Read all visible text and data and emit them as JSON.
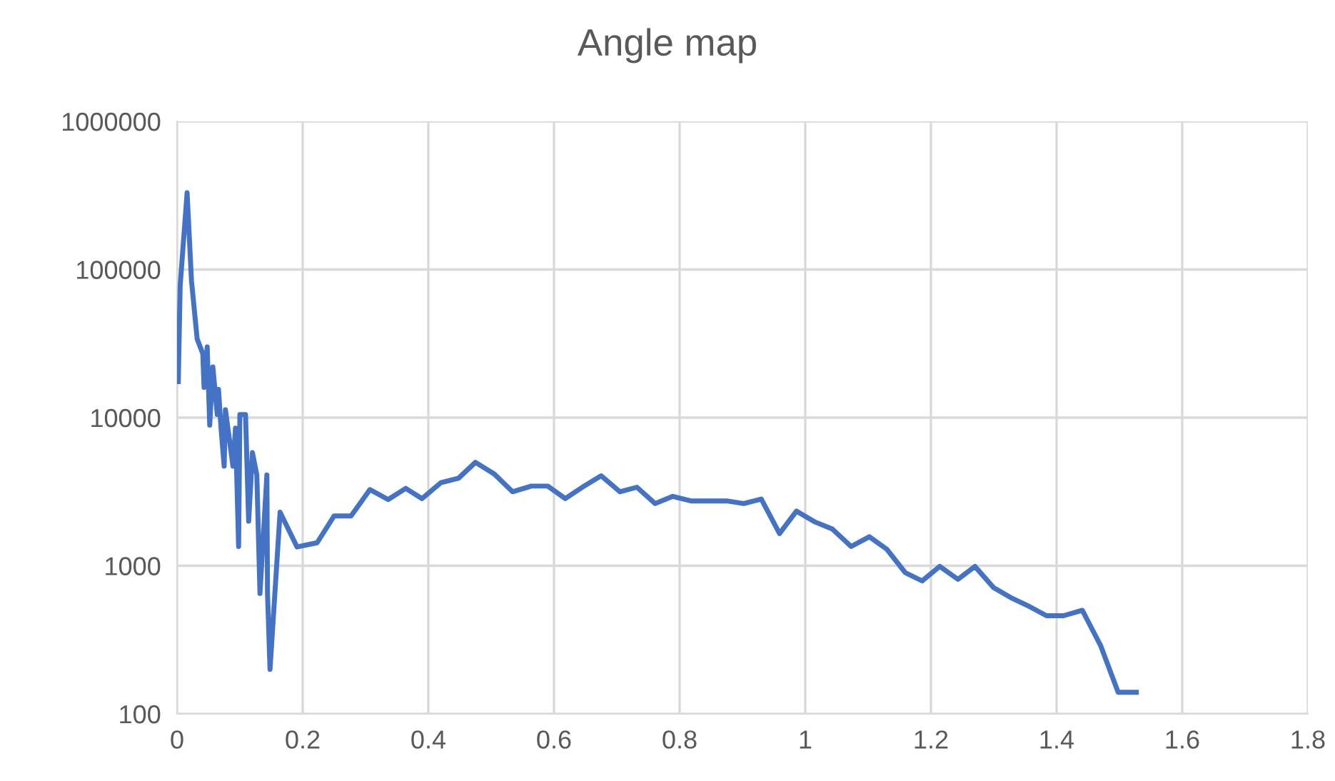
{
  "chart_data": {
    "type": "line",
    "title": "Angle map",
    "x": [
      0.002,
      0.005,
      0.016,
      0.023,
      0.032,
      0.041,
      0.043,
      0.048,
      0.052,
      0.057,
      0.064,
      0.066,
      0.07,
      0.075,
      0.077,
      0.089,
      0.093,
      0.098,
      0.1,
      0.109,
      0.114,
      0.12,
      0.127,
      0.132,
      0.143,
      0.144,
      0.148,
      0.164,
      0.191,
      0.223,
      0.25,
      0.277,
      0.307,
      0.336,
      0.364,
      0.39,
      0.42,
      0.448,
      0.475,
      0.505,
      0.534,
      0.564,
      0.59,
      0.618,
      0.648,
      0.675,
      0.705,
      0.732,
      0.761,
      0.789,
      0.818,
      0.848,
      0.875,
      0.902,
      0.93,
      0.959,
      0.986,
      1.016,
      1.043,
      1.073,
      1.102,
      1.13,
      1.159,
      1.186,
      1.214,
      1.243,
      1.27,
      1.3,
      1.327,
      1.357,
      1.384,
      1.411,
      1.441,
      1.47,
      1.498,
      1.527
    ],
    "series": [
      {
        "color": "#4472c4",
        "values": [
          17500,
          78000,
          330000,
          84000,
          34000,
          27000,
          16000,
          30000,
          8900,
          22000,
          10500,
          15500,
          8500,
          4700,
          11300,
          4700,
          8500,
          1350,
          10500,
          10500,
          2000,
          5800,
          4100,
          650,
          4100,
          650,
          200,
          2300,
          1340,
          1430,
          2170,
          2170,
          3270,
          2800,
          3330,
          2840,
          3640,
          3900,
          4990,
          4160,
          3160,
          3450,
          3450,
          2840,
          3450,
          4050,
          3160,
          3390,
          2630,
          2940,
          2740,
          2740,
          2740,
          2630,
          2820,
          1650,
          2340,
          1970,
          1770,
          1350,
          1570,
          1290,
          900,
          790,
          990,
          810,
          990,
          710,
          610,
          530,
          460,
          460,
          500,
          290,
          140,
          140
        ]
      }
    ],
    "log": "y",
    "xlim": [
      0,
      1.8
    ],
    "xticks": [
      0,
      0.2,
      0.4,
      0.6,
      0.8,
      1,
      1.2,
      1.4,
      1.6,
      1.8
    ],
    "ylim": [
      100,
      1000000
    ],
    "yticks": [
      100,
      1000,
      10000,
      100000,
      1000000
    ],
    "grid": true
  }
}
